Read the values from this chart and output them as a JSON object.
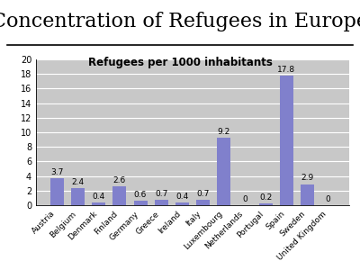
{
  "title": "Concentration of Refugees in Europe",
  "subtitle": "Refugees per 1000 inhabitants",
  "categories": [
    "Austria",
    "Belgium",
    "Denmark",
    "Finland",
    "Germany",
    "Greece",
    "Ireland",
    "Italy",
    "Luxembourg",
    "Netherlands",
    "Portugal",
    "Spain",
    "Sweden",
    "United Kingdom"
  ],
  "values": [
    3.7,
    2.4,
    0.4,
    2.6,
    0.6,
    0.7,
    0.4,
    0.7,
    9.2,
    0,
    0.2,
    17.8,
    2.9,
    0
  ],
  "bar_color": "#8080cc",
  "plot_bg_color": "#c8c8c8",
  "outer_bg_color": "#ffffff",
  "ylim": [
    0,
    20
  ],
  "yticks": [
    0,
    2,
    4,
    6,
    8,
    10,
    12,
    14,
    16,
    18,
    20
  ],
  "title_fontsize": 16,
  "subtitle_fontsize": 8.5,
  "label_fontsize": 6.5,
  "value_fontsize": 6.5
}
